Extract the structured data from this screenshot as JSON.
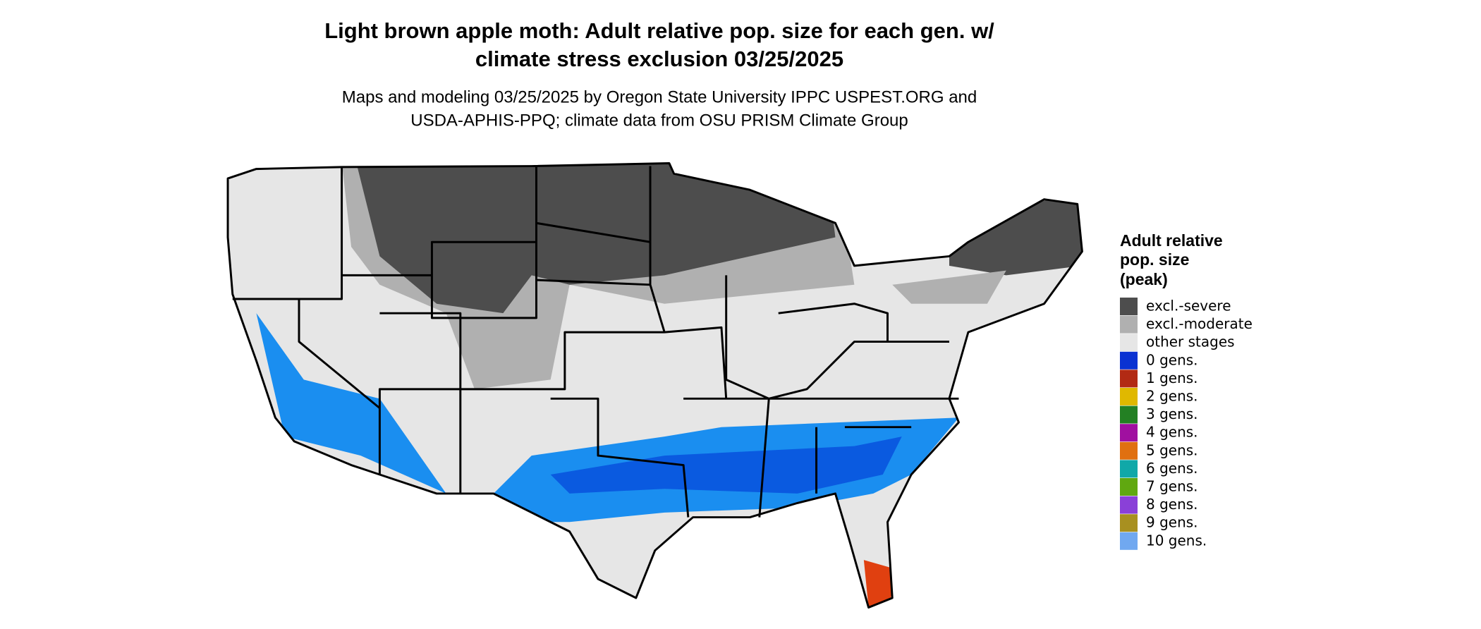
{
  "title": [
    "Light brown apple moth: Adult relative pop. size for each gen. w/",
    "climate stress exclusion 03/25/2025"
  ],
  "subtitle": [
    "Maps and modeling 03/25/2025 by Oregon State University IPPC USPEST.ORG and",
    "USDA-APHIS-PPQ; climate data from OSU PRISM Climate Group"
  ],
  "legend": {
    "title": [
      "Adult relative",
      "pop. size",
      "(peak)"
    ],
    "items": [
      {
        "label": "excl.-severe",
        "color": "#4d4d4d"
      },
      {
        "label": "excl.-moderate",
        "color": "#b0b0b0"
      },
      {
        "label": "other stages",
        "color": "#e6e6e6"
      },
      {
        "label": "0 gens.",
        "color": "#0a32d2"
      },
      {
        "label": "1 gens.",
        "color": "#b22a14"
      },
      {
        "label": "2 gens.",
        "color": "#e0b800"
      },
      {
        "label": "3 gens.",
        "color": "#238023"
      },
      {
        "label": "4 gens.",
        "color": "#a010a0"
      },
      {
        "label": "5 gens.",
        "color": "#e07010"
      },
      {
        "label": "6 gens.",
        "color": "#10a8a8"
      },
      {
        "label": "7 gens.",
        "color": "#60a810"
      },
      {
        "label": "8 gens.",
        "color": "#8a40d8"
      },
      {
        "label": "9 gens.",
        "color": "#a89020"
      },
      {
        "label": "10 gens.",
        "color": "#70a8f0"
      }
    ]
  }
}
